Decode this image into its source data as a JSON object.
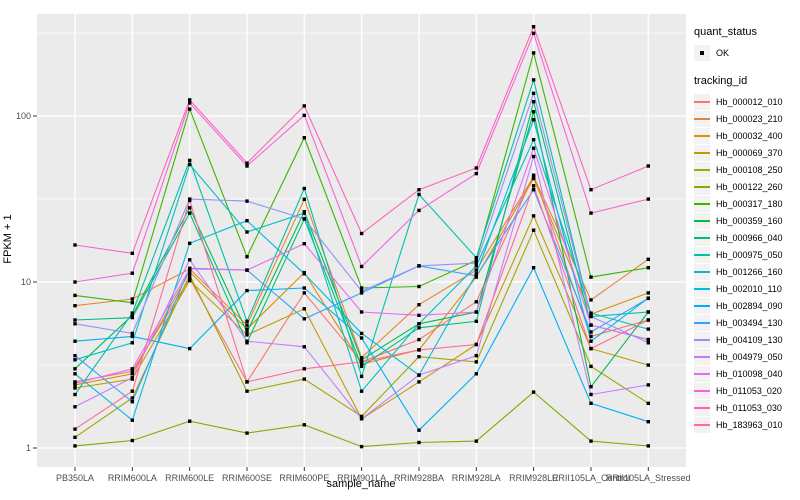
{
  "chart_data": {
    "type": "line",
    "xlabel": "sample_name",
    "ylabel": "FPKM + 1",
    "y_scale": "log10",
    "y_ticks": [
      1,
      10,
      100
    ],
    "y_minor_ticks": [
      3.162,
      31.62,
      316.2
    ],
    "ylim": [
      0.77,
      410
    ],
    "grid": "on",
    "legend_position": "right",
    "categories": [
      "PB350LA",
      "RRIM600LA",
      "RRIM600LE",
      "RRIM600SE",
      "RRIM600PE",
      "RRIM901LA",
      "RRIM928BA",
      "RRIM928LA",
      "RRIM928LE",
      "RRII105LA_Control",
      "RRII105LA_Stressed"
    ],
    "series": [
      {
        "name": "Hb_000012_010",
        "color": "#F8766D",
        "values": [
          2.5,
          2.9,
          10.5,
          2.5,
          8.6,
          3.3,
          4.5,
          7.6,
          44,
          4.7,
          5.9
        ]
      },
      {
        "name": "Hb_000023_210",
        "color": "#EA8331",
        "values": [
          7.2,
          7.9,
          12.0,
          5.5,
          31.5,
          3.5,
          7.3,
          11.8,
          43,
          7.8,
          13.7
        ]
      },
      {
        "name": "Hb_000032_400",
        "color": "#D89000",
        "values": [
          2.4,
          2.8,
          11.5,
          5.2,
          11.4,
          3.2,
          3.9,
          10.7,
          42,
          6.4,
          8.6
        ]
      },
      {
        "name": "Hb_000069_370",
        "color": "#C09B00",
        "values": [
          2.3,
          2.6,
          10.2,
          4.8,
          6.9,
          1.5,
          2.5,
          4.2,
          25,
          3.97,
          3.16
        ]
      },
      {
        "name": "Hb_000108_250",
        "color": "#A3A500",
        "values": [
          1.16,
          2.0,
          11.0,
          2.2,
          2.6,
          1.55,
          3.55,
          3.3,
          20.5,
          3.1,
          1.86
        ]
      },
      {
        "name": "Hb_000122_260",
        "color": "#7CAE00",
        "values": [
          1.03,
          1.11,
          1.45,
          1.23,
          1.38,
          1.02,
          1.08,
          1.1,
          2.17,
          1.1,
          1.03
        ]
      },
      {
        "name": "Hb_000317_180",
        "color": "#39B600",
        "values": [
          8.3,
          7.5,
          110,
          14.2,
          74,
          9.2,
          9.4,
          13.5,
          240,
          10.7,
          12.2
        ]
      },
      {
        "name": "Hb_000359_160",
        "color": "#00BB4E",
        "values": [
          3.0,
          6.3,
          28,
          5.0,
          26.5,
          3.4,
          5.6,
          6.6,
          106,
          2.34,
          6.6
        ]
      },
      {
        "name": "Hb_000966_040",
        "color": "#00BF7D",
        "values": [
          5.9,
          6.1,
          26,
          4.3,
          24,
          3.1,
          5.3,
          5.8,
          122,
          5.5,
          4.5
        ]
      },
      {
        "name": "Hb_000975_050",
        "color": "#00C1A3",
        "values": [
          2.1,
          6.5,
          54,
          5.8,
          36.6,
          2.7,
          33.7,
          14,
          165,
          6.2,
          6.6
        ]
      },
      {
        "name": "Hb_001266_160",
        "color": "#00BFC4",
        "values": [
          3.4,
          4.3,
          51,
          20,
          26,
          2.2,
          5.6,
          12.5,
          72,
          6.5,
          5.2
        ]
      },
      {
        "name": "Hb_002010_110",
        "color": "#00BAE0",
        "values": [
          2.8,
          1.47,
          17.1,
          23.4,
          11.2,
          4.9,
          2.75,
          11.2,
          95,
          4.4,
          8.0
        ]
      },
      {
        "name": "Hb_002894_090",
        "color": "#00B0F6",
        "values": [
          4.4,
          4.7,
          3.97,
          8.87,
          9.2,
          4.6,
          1.28,
          2.8,
          12.2,
          1.86,
          1.44
        ]
      },
      {
        "name": "Hb_003494_130",
        "color": "#35A2FF",
        "values": [
          3.6,
          1.9,
          12.1,
          11.8,
          6.0,
          8.6,
          12.5,
          10.9,
          36,
          5.0,
          7.96
        ]
      },
      {
        "name": "Hb_004109_130",
        "color": "#9590FF",
        "values": [
          5.6,
          4.9,
          31.6,
          30.7,
          24,
          8.8,
          12.5,
          13.0,
          137,
          6.2,
          4.3
        ]
      },
      {
        "name": "Hb_004979_050",
        "color": "#C77CFF",
        "values": [
          1.77,
          2.65,
          13.6,
          4.4,
          4.07,
          1.5,
          2.75,
          3.6,
          57,
          2.1,
          2.4
        ]
      },
      {
        "name": "Hb_010098_040",
        "color": "#E76BF3",
        "values": [
          2.45,
          3.0,
          12.0,
          11.8,
          17,
          6.6,
          6.3,
          6.6,
          64,
          5.5,
          4.5
        ]
      },
      {
        "name": "Hb_011053_020",
        "color": "#FA62DB",
        "values": [
          10,
          11.3,
          120,
          50,
          101,
          12.4,
          27,
          45,
          315,
          26,
          31.6
        ]
      },
      {
        "name": "Hb_011053_030",
        "color": "#FF62BC",
        "values": [
          16.7,
          14.9,
          125,
          52,
          115,
          19.6,
          36,
          48.6,
          345,
          36,
          50
        ]
      },
      {
        "name": "Hb_183963_010",
        "color": "#FF6A98",
        "values": [
          1.3,
          2.2,
          31,
          2.5,
          3.0,
          3.3,
          3.9,
          4.2,
          38,
          3.97,
          5.9
        ]
      }
    ]
  },
  "legend": {
    "quant_status_title": "quant_status",
    "quant_status_items": [
      {
        "label": "OK"
      }
    ],
    "tracking_title": "tracking_id"
  },
  "colors": {
    "panel_bg": "#EBEBEB",
    "grid": "#FFFFFF",
    "tick_mark": "#333333",
    "tick_label": "#4D4D4D",
    "marker": "#000000",
    "legend_key_bg": "#F2F2F2"
  }
}
